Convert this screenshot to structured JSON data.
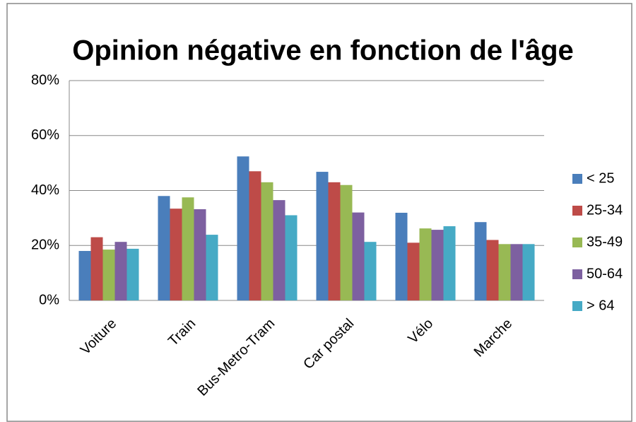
{
  "chart_data": {
    "type": "bar",
    "title": "Opinion négative en fonction de l'âge",
    "categories": [
      "Voiture",
      "Train",
      "Bus-Metro-Tram",
      "Car postal",
      "Vélo",
      "Marche"
    ],
    "series": [
      {
        "name": "< 25",
        "color": "#4a7ebb",
        "values": [
          18,
          38,
          52.4,
          46.8,
          31.9,
          28.5
        ]
      },
      {
        "name": "25-34",
        "color": "#be4b48",
        "values": [
          23,
          33.4,
          47,
          43,
          21,
          22
        ]
      },
      {
        "name": "35-49",
        "color": "#98b954",
        "values": [
          18.5,
          37.5,
          43,
          42,
          26.2,
          20.5
        ]
      },
      {
        "name": "50-64",
        "color": "#7d60a0",
        "values": [
          21.3,
          33.2,
          36.5,
          32,
          25.7,
          20.5
        ]
      },
      {
        "name": "> 64",
        "color": "#46aac5",
        "values": [
          18.8,
          23.9,
          31,
          21.3,
          27,
          20.5
        ]
      }
    ],
    "ylim": [
      0,
      80
    ],
    "yticks": [
      {
        "value": 0,
        "label": "0%"
      },
      {
        "value": 20,
        "label": "20%"
      },
      {
        "value": 40,
        "label": "40%"
      },
      {
        "value": 60,
        "label": "60%"
      },
      {
        "value": 80,
        "label": "80%"
      }
    ],
    "grid": true,
    "legend": "right"
  }
}
